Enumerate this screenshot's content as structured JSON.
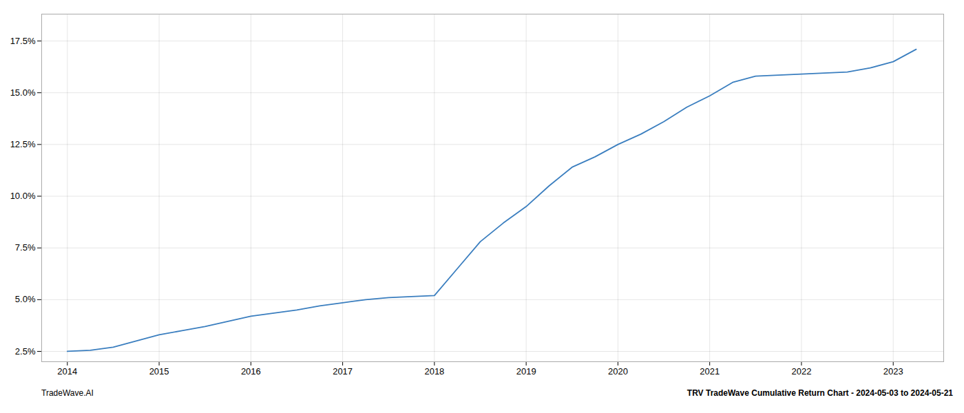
{
  "chart_data": {
    "type": "line",
    "x": [
      2014.0,
      2014.25,
      2014.5,
      2014.75,
      2015.0,
      2015.25,
      2015.5,
      2015.75,
      2016.0,
      2016.25,
      2016.5,
      2016.75,
      2017.0,
      2017.25,
      2017.5,
      2017.75,
      2018.0,
      2018.25,
      2018.5,
      2018.75,
      2019.0,
      2019.25,
      2019.5,
      2019.75,
      2020.0,
      2020.25,
      2020.5,
      2020.75,
      2021.0,
      2021.25,
      2021.5,
      2021.75,
      2022.0,
      2022.25,
      2022.5,
      2022.75,
      2023.0,
      2023.25
    ],
    "values": [
      2.5,
      2.55,
      2.7,
      3.0,
      3.3,
      3.5,
      3.7,
      3.95,
      4.2,
      4.35,
      4.5,
      4.7,
      4.85,
      5.0,
      5.1,
      5.15,
      5.2,
      6.5,
      7.8,
      8.7,
      9.5,
      10.5,
      11.4,
      11.9,
      12.5,
      13.0,
      13.6,
      14.3,
      14.85,
      15.5,
      15.8,
      15.85,
      15.9,
      15.95,
      16.0,
      16.2,
      16.5,
      17.1
    ],
    "color": "#3a7ebf",
    "xlim": [
      2013.72,
      2023.55
    ],
    "xticks": [
      2014,
      2015,
      2016,
      2017,
      2018,
      2019,
      2020,
      2021,
      2022,
      2023
    ],
    "ylim": [
      2.0,
      18.8
    ],
    "yticks": [
      {
        "value": 2.5,
        "label": "2.5%"
      },
      {
        "value": 5.0,
        "label": "5.0%"
      },
      {
        "value": 7.5,
        "label": "7.5%"
      },
      {
        "value": 10.0,
        "label": "10.0%"
      },
      {
        "value": 12.5,
        "label": "12.5%"
      },
      {
        "value": 15.0,
        "label": "15.0%"
      },
      {
        "value": 17.5,
        "label": "17.5%"
      }
    ],
    "grid": true,
    "annotations": [
      "TradeWave.AI",
      "TRV TradeWave Cumulative Return Chart - 2024-05-03 to 2024-05-21"
    ]
  }
}
